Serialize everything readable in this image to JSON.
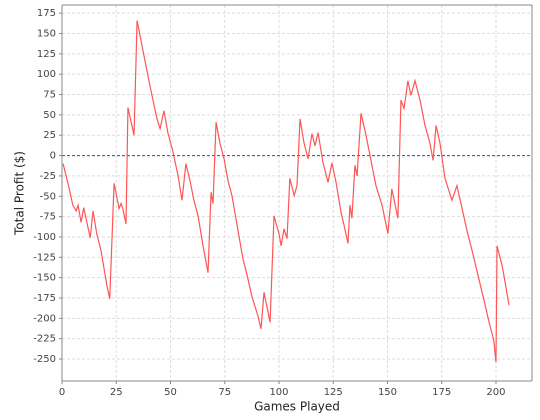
{
  "chart_data": {
    "type": "line",
    "x_label": "Games Played",
    "y_label": "Total Profit ($)",
    "x": [
      0.5,
      3,
      5,
      6.5,
      7.4,
      8.8,
      10,
      13,
      14.3,
      16,
      18,
      20.7,
      22,
      24,
      26.3,
      27.2,
      28,
      29.5,
      30.4,
      33.2,
      34.6,
      38.2,
      40.5,
      43.8,
      45.2,
      47,
      48.8,
      51,
      53.5,
      55.3,
      57.1,
      59,
      60.8,
      62.7,
      65,
      67.3,
      68.7,
      69.6,
      71,
      72.8,
      74.7,
      76.5,
      78.3,
      81.1,
      83.4,
      85.3,
      87.6,
      90.3,
      91.7,
      93.1,
      95,
      95.9,
      97.7,
      100,
      101,
      102.3,
      103.7,
      105,
      107,
      108.3,
      109.7,
      111.5,
      113.4,
      115.2,
      116.6,
      118,
      120.3,
      122.6,
      124.4,
      126.3,
      128.6,
      130,
      131.8,
      132.7,
      133.6,
      135,
      136,
      137.8,
      140.1,
      142.4,
      144.7,
      147.5,
      150.2,
      152,
      154.8,
      156.2,
      157.6,
      158.5,
      159.4,
      160.8,
      162.7,
      165,
      167.3,
      169.6,
      171,
      172.4,
      174.2,
      176.5,
      179.7,
      182,
      184.3,
      186.6,
      189,
      191.7,
      194.5,
      197.2,
      199,
      200,
      200.5,
      202.8,
      204.1,
      206
    ],
    "values": [
      -10,
      -37,
      -61,
      -68,
      -61,
      -82,
      -64,
      -101,
      -68,
      -96,
      -117,
      -160,
      -176,
      -34,
      -65,
      -59,
      -65,
      -84,
      59,
      25,
      166,
      117,
      86,
      45,
      33,
      55,
      28,
      6,
      -25,
      -55,
      -10,
      -31,
      -55,
      -74,
      -111,
      -144,
      -45,
      -59,
      41,
      15,
      -4,
      -31,
      -49,
      -92,
      -127,
      -147,
      -174,
      -197,
      -213,
      -168,
      -193,
      -205,
      -74,
      -96,
      -111,
      -90,
      -102,
      -28,
      -49,
      -37,
      45,
      16,
      -4,
      27,
      12,
      28,
      -9,
      -33,
      -9,
      -33,
      -70,
      -86,
      -108,
      -61,
      -77,
      -12,
      -25,
      52,
      25,
      -6,
      -37,
      -61,
      -96,
      -41,
      -77,
      68,
      58,
      74,
      92,
      74,
      92,
      68,
      37,
      15,
      -6,
      37,
      15,
      -28,
      -55,
      -37,
      -64,
      -92,
      -117,
      -147,
      -178,
      -209,
      -227,
      -254,
      -111,
      -135,
      -154,
      -184
    ],
    "color": "#ff5555",
    "xlim": [
      0,
      216.6
    ],
    "ylim": [
      -277,
      185
    ],
    "xticks": [
      0,
      25,
      50,
      75,
      100,
      125,
      150,
      175,
      200
    ],
    "yticks": [
      -250,
      -225,
      -200,
      -175,
      -150,
      -125,
      -100,
      -75,
      -50,
      -25,
      0,
      25,
      50,
      75,
      100,
      125,
      150,
      175
    ],
    "grid": true,
    "zero_line": true,
    "zero_line_color": "#4444bb"
  }
}
